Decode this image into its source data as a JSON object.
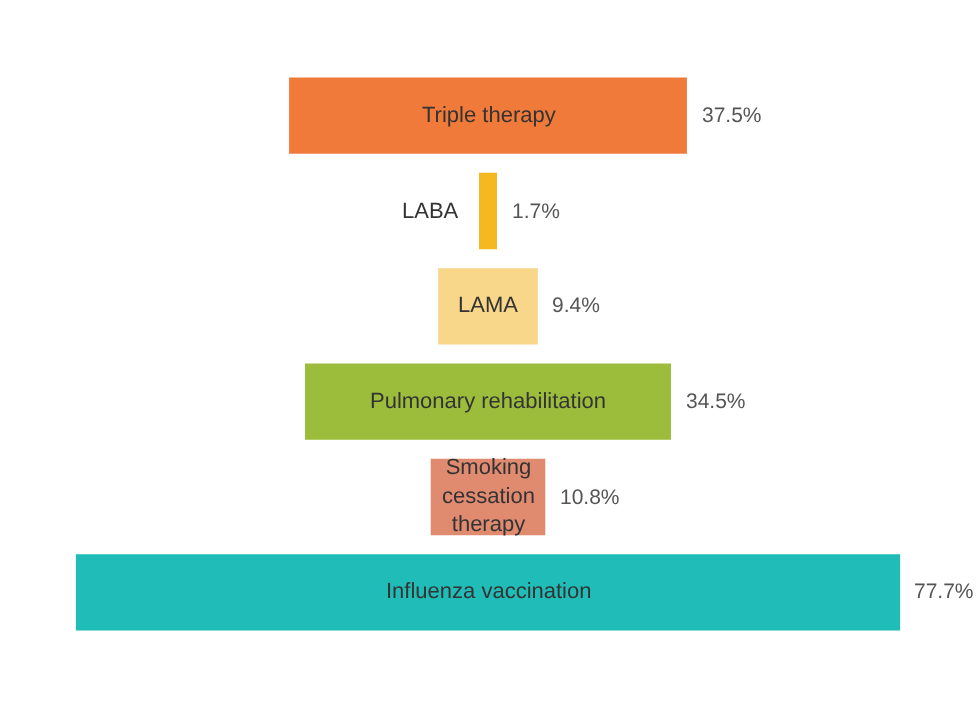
{
  "chart_data": {
    "type": "other",
    "categories": [
      "Triple therapy",
      "LABA",
      "LAMA",
      "Pulmonary rehabilitation",
      "Smoking cessation therapy",
      "Influenza vaccination"
    ],
    "values": [
      37.5,
      1.7,
      9.4,
      34.5,
      10.8,
      77.7
    ],
    "value_labels": [
      "37.5%",
      "1.7%",
      "9.4%",
      "34.5%",
      "10.8%",
      "77.7%"
    ],
    "colors": [
      "#f07a3a",
      "#f5b820",
      "#f8d68a",
      "#9cbd3c",
      "#e08a70",
      "#1fbcb8"
    ]
  }
}
